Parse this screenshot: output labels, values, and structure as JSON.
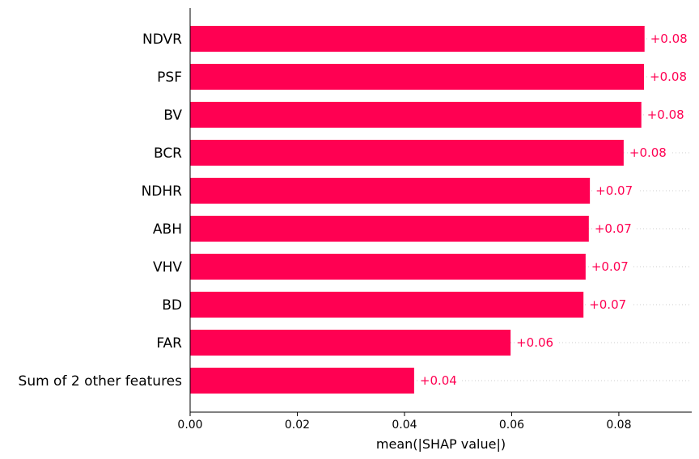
{
  "chart_data": {
    "type": "bar",
    "orientation": "horizontal",
    "title": "",
    "xlabel": "mean(|SHAP value|)",
    "ylabel": "",
    "xlim": [
      0,
      0.0936
    ],
    "xticks": [
      "0.00",
      "0.02",
      "0.04",
      "0.06",
      "0.08"
    ],
    "xtick_values": [
      0,
      0.02,
      0.04,
      0.06,
      0.08
    ],
    "grid": false,
    "bar_color": "#ff0052",
    "categories": [
      "NDVR",
      "PSF",
      "BV",
      "BCR",
      "NDHR",
      "ABH",
      "VHV",
      "BD",
      "FAR",
      "Sum of 2 other features"
    ],
    "values": [
      0.0848,
      0.0847,
      0.0842,
      0.0809,
      0.0746,
      0.0744,
      0.0738,
      0.0734,
      0.0598,
      0.0418
    ],
    "value_labels": [
      "+0.08",
      "+0.08",
      "+0.08",
      "+0.08",
      "+0.07",
      "+0.07",
      "+0.07",
      "+0.07",
      "+0.06",
      "+0.04"
    ]
  }
}
